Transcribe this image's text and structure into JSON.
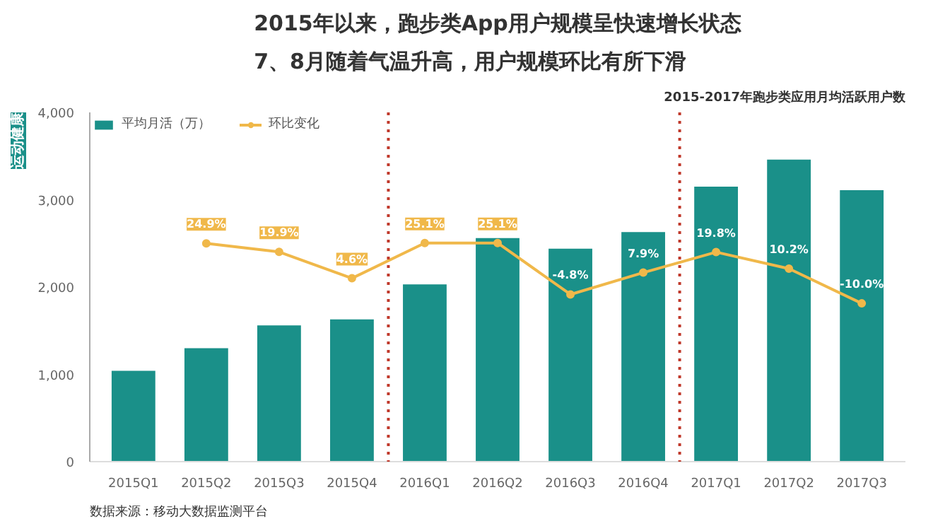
{
  "chart_data": {
    "type": "bar",
    "title": "2015年以来，跑步类App用户规模呈快速增长状态\n7、8月随着气温升高，用户规模环比有所下滑",
    "subtitle": "2015-2017年跑步类应用月均活跃用户数",
    "categories": [
      "2015Q1",
      "2015Q2",
      "2015Q3",
      "2015Q4",
      "2016Q1",
      "2016Q2",
      "2016Q3",
      "2016Q4",
      "2017Q1",
      "2017Q2",
      "2017Q3"
    ],
    "series": [
      {
        "name": "平均月活（万）",
        "color": "#1a9089",
        "values": [
          1040,
          1300,
          1560,
          1630,
          2030,
          2560,
          2440,
          2630,
          3150,
          3460,
          3110
        ]
      },
      {
        "name": "环比变化",
        "type": "line",
        "axis": "y2",
        "color": "#f0b84a",
        "values": [
          null,
          24.9,
          19.9,
          4.6,
          25.1,
          25.1,
          -4.8,
          7.9,
          19.8,
          10.2,
          -10.0
        ],
        "value_labels": [
          null,
          "24.9%",
          "19.9%",
          "4.6%",
          "25.1%",
          "25.1%",
          "-4.8%",
          "7.9%",
          "19.8%",
          "10.2%",
          "-10.0%"
        ]
      }
    ],
    "ylim": [
      0,
      4000
    ],
    "yticks": [
      {
        "value": 0,
        "label": "0"
      },
      {
        "value": 1000,
        "label": "1,000"
      },
      {
        "value": 2000,
        "label": "2,000"
      },
      {
        "value": 3000,
        "label": "3,000"
      },
      {
        "value": 4000,
        "label": "4,000"
      }
    ],
    "y2lim": [
      -102,
      101
    ],
    "marker": "circle",
    "grid": false,
    "legend": "top left",
    "annotations": [
      "运动健康",
      "数据来源：移动大数据监测平台"
    ]
  }
}
